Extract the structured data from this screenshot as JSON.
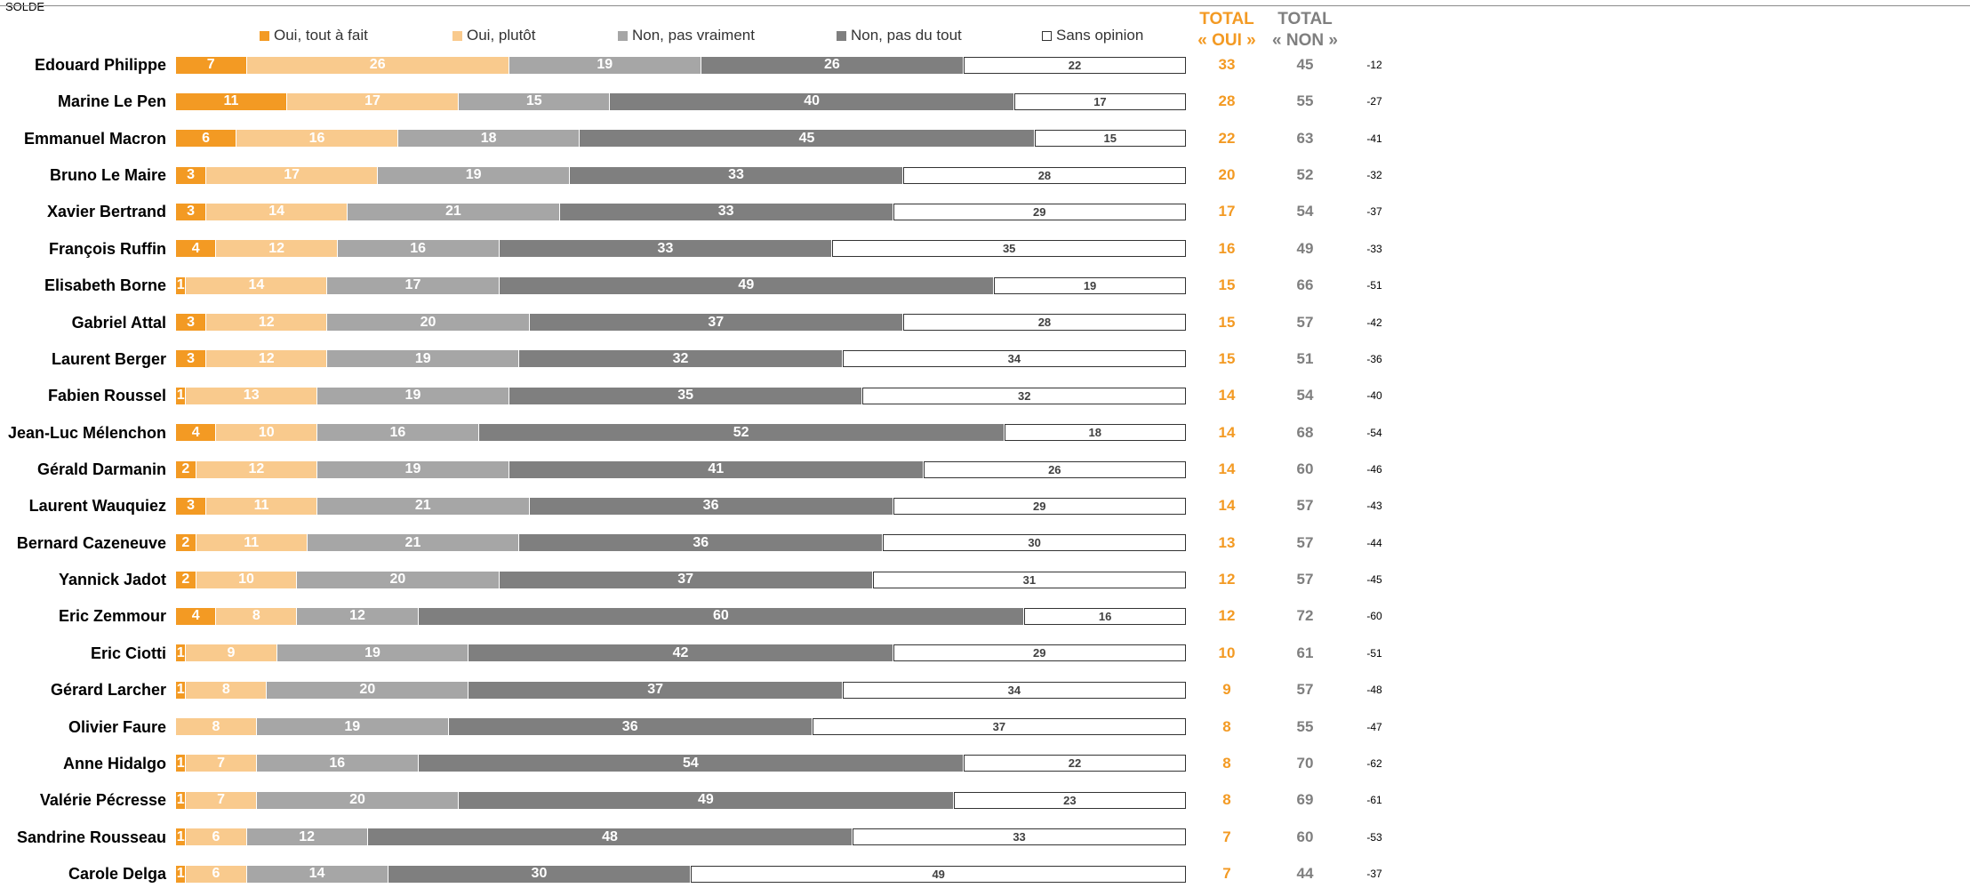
{
  "legend": [
    {
      "label": "Oui, tout à fait",
      "color": "#f39a23"
    },
    {
      "label": "Oui, plutôt",
      "color": "#f9ca8d"
    },
    {
      "label": "Non, pas vraiment",
      "color": "#a6a6a6"
    },
    {
      "label": "Non, pas du tout",
      "color": "#7f7f7f"
    },
    {
      "label": "Sans opinion",
      "color": "#ffffff"
    }
  ],
  "headers": {
    "total_oui_line1": "TOTAL",
    "total_oui_line2": "« OUI »",
    "total_non_line1": "TOTAL",
    "total_non_line2": "« NON »",
    "solde": "SOLDE"
  },
  "colors": {
    "oui_total": "#f39a23",
    "non_total": "#7f7f7f"
  },
  "chart_data": {
    "type": "bar",
    "orientation": "horizontal",
    "stacked": true,
    "xlim": [
      0,
      100
    ],
    "legend_position": "top",
    "categories": [
      "Edouard Philippe",
      "Marine Le Pen",
      "Emmanuel Macron",
      "Bruno Le Maire",
      "Xavier Bertrand",
      "François Ruffin",
      "Elisabeth Borne",
      "Gabriel Attal",
      "Laurent Berger",
      "Fabien Roussel",
      "Jean-Luc Mélenchon",
      "Gérald Darmanin",
      "Laurent Wauquiez",
      "Bernard Cazeneuve",
      "Yannick Jadot",
      "Eric Zemmour",
      "Eric Ciotti",
      "Gérard Larcher",
      "Olivier Faure",
      "Anne Hidalgo",
      "Valérie Pécresse",
      "Sandrine Rousseau",
      "Carole Delga"
    ],
    "series": [
      {
        "name": "Oui, tout à fait",
        "values": [
          7,
          11,
          6,
          3,
          3,
          4,
          1,
          3,
          3,
          1,
          4,
          2,
          3,
          2,
          2,
          4,
          1,
          1,
          0,
          1,
          1,
          1,
          1
        ]
      },
      {
        "name": "Oui, plutôt",
        "values": [
          26,
          17,
          16,
          17,
          14,
          12,
          14,
          12,
          12,
          13,
          10,
          12,
          11,
          11,
          10,
          8,
          9,
          8,
          8,
          7,
          7,
          6,
          6
        ]
      },
      {
        "name": "Non, pas vraiment",
        "values": [
          19,
          15,
          18,
          19,
          21,
          16,
          17,
          20,
          19,
          19,
          16,
          19,
          21,
          21,
          20,
          12,
          19,
          20,
          19,
          16,
          20,
          12,
          14
        ]
      },
      {
        "name": "Non, pas du tout",
        "values": [
          26,
          40,
          45,
          33,
          33,
          33,
          49,
          37,
          32,
          35,
          52,
          41,
          36,
          36,
          37,
          60,
          42,
          37,
          36,
          54,
          49,
          48,
          30
        ]
      },
      {
        "name": "Sans opinion",
        "values": [
          22,
          17,
          15,
          28,
          29,
          35,
          19,
          28,
          34,
          32,
          18,
          26,
          29,
          30,
          31,
          16,
          29,
          34,
          37,
          22,
          23,
          33,
          49
        ]
      }
    ],
    "total_oui": [
      33,
      28,
      22,
      20,
      17,
      16,
      15,
      15,
      15,
      14,
      14,
      14,
      14,
      13,
      12,
      12,
      10,
      9,
      8,
      8,
      8,
      7,
      7
    ],
    "total_non": [
      45,
      55,
      63,
      52,
      54,
      49,
      66,
      57,
      51,
      54,
      68,
      60,
      57,
      57,
      57,
      72,
      61,
      57,
      55,
      70,
      69,
      60,
      44
    ],
    "solde": [
      "-12",
      "-27",
      "-41",
      "-32",
      "-37",
      "-33",
      "-51",
      "-42",
      "-36",
      "-40",
      "-54",
      "-46",
      "-43",
      "-44",
      "-45",
      "-60",
      "-51",
      "-48",
      "-47",
      "-62",
      "-61",
      "-53",
      "-37"
    ]
  }
}
